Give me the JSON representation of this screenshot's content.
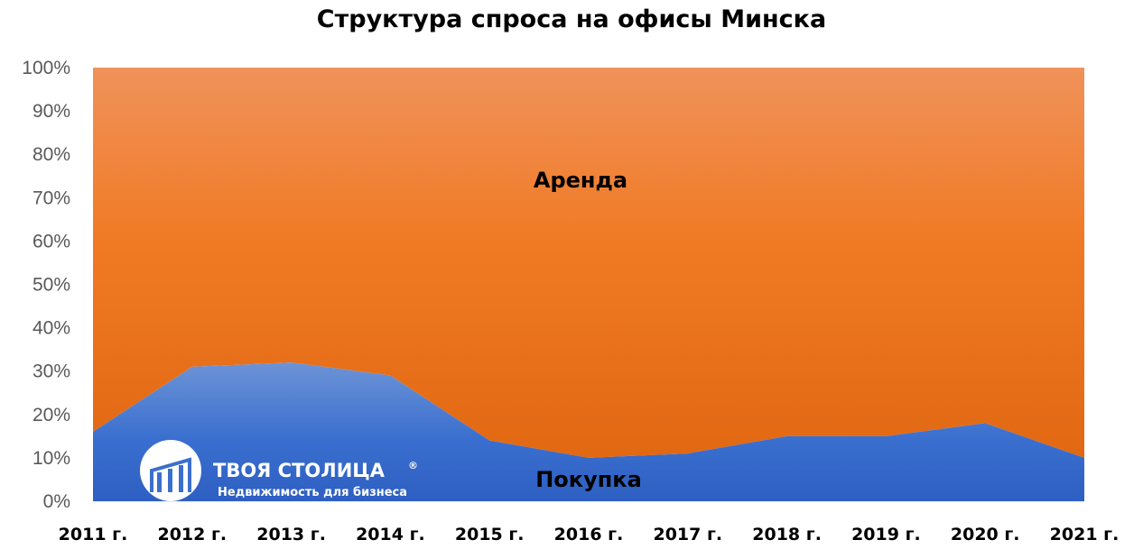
{
  "chart_data": {
    "type": "area",
    "stacked": "percent",
    "title": "Структура спроса на офисы Минска",
    "categories": [
      "2011 г.",
      "2012 г.",
      "2013 г.",
      "2014 г.",
      "2015 г.",
      "2016 г.",
      "2017 г.",
      "2018 г.",
      "2019 г.",
      "2020 г.",
      "2021 г."
    ],
    "series": [
      {
        "name": "Покупка",
        "values": [
          16,
          31,
          32,
          29,
          14,
          10,
          11,
          15,
          15,
          18,
          10
        ],
        "color": "#3a6fcf"
      },
      {
        "name": "Аренда",
        "values": [
          84,
          69,
          68,
          71,
          86,
          90,
          89,
          85,
          85,
          82,
          90
        ],
        "color": "#f07a24"
      }
    ],
    "ylim": [
      0,
      100
    ],
    "yticks": [
      "0%",
      "10%",
      "20%",
      "30%",
      "40%",
      "50%",
      "60%",
      "70%",
      "80%",
      "90%",
      "100%"
    ],
    "grid": false,
    "legend": "none"
  },
  "logo": {
    "name": "ТВОЯ СТОЛИЦА",
    "registered": "®",
    "tagline": "Недвижимость для бизнеса",
    "icon": "building-columns-icon"
  }
}
